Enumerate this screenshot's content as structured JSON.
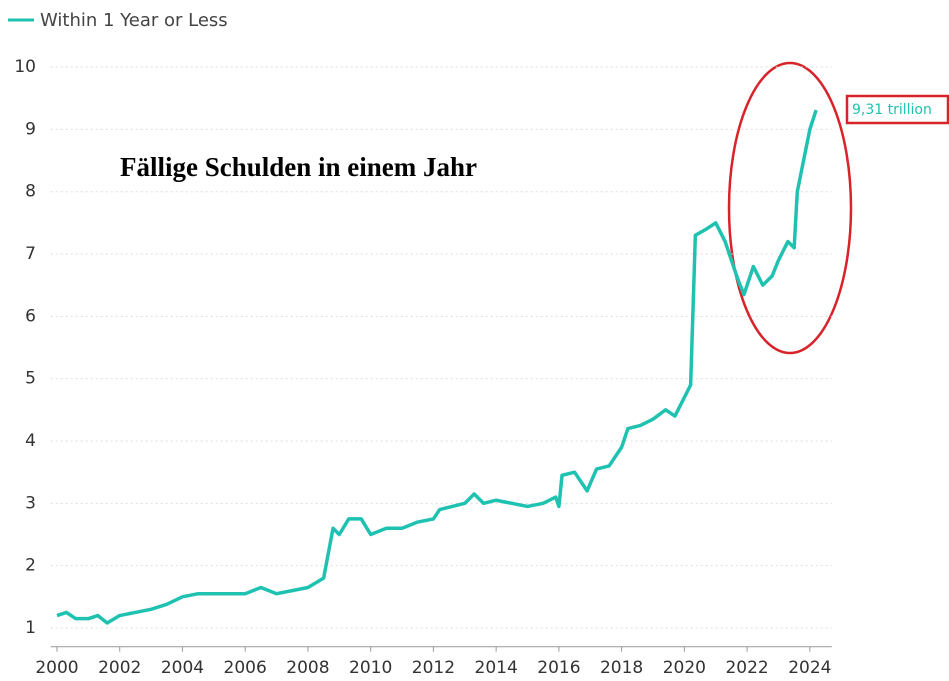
{
  "chart_data": {
    "type": "line",
    "title": "Fällige Schulden in einem Jahr",
    "annotation": "9,31 trillion",
    "x": [
      2000,
      2000.3,
      2000.6,
      2001,
      2001.3,
      2001.6,
      2002,
      2002.5,
      2003,
      2003.5,
      2004,
      2004.5,
      2005,
      2005.5,
      2006,
      2006.5,
      2007,
      2007.5,
      2008,
      2008.5,
      2008.8,
      2009,
      2009.3,
      2009.7,
      2010,
      2010.5,
      2011,
      2011.5,
      2012,
      2012.2,
      2012.6,
      2013,
      2013.3,
      2013.6,
      2014,
      2014.5,
      2015,
      2015.5,
      2015.9,
      2016,
      2016.1,
      2016.5,
      2016.9,
      2017.2,
      2017.6,
      2018,
      2018.2,
      2018.6,
      2019,
      2019.4,
      2019.7,
      2020,
      2020.2,
      2020.35,
      2020.7,
      2021,
      2021.3,
      2021.7,
      2021.9,
      2022.2,
      2022.5,
      2022.8,
      2023,
      2023.3,
      2023.5,
      2023.6,
      2023.8,
      2024,
      2024.2
    ],
    "series": [
      {
        "name": "Within 1 Year or Less",
        "color": "#1fc2b0",
        "values": [
          1.2,
          1.25,
          1.15,
          1.15,
          1.2,
          1.08,
          1.2,
          1.25,
          1.3,
          1.38,
          1.5,
          1.55,
          1.55,
          1.55,
          1.55,
          1.65,
          1.55,
          1.6,
          1.65,
          1.8,
          2.6,
          2.5,
          2.75,
          2.75,
          2.5,
          2.6,
          2.6,
          2.7,
          2.75,
          2.9,
          2.95,
          3.0,
          3.15,
          3.0,
          3.05,
          3.0,
          2.95,
          3.0,
          3.1,
          2.95,
          3.45,
          3.5,
          3.2,
          3.55,
          3.6,
          3.9,
          4.2,
          4.25,
          4.35,
          4.5,
          4.4,
          4.7,
          4.9,
          7.3,
          7.4,
          7.5,
          7.2,
          6.6,
          6.35,
          6.8,
          6.5,
          6.65,
          6.9,
          7.2,
          7.1,
          8.0,
          8.5,
          9.0,
          9.31
        ]
      }
    ],
    "xlim": [
      1999.8,
      2024.7
    ],
    "xticks": [
      2000,
      2002,
      2004,
      2006,
      2008,
      2010,
      2012,
      2014,
      2016,
      2018,
      2020,
      2022,
      2024
    ],
    "ylim": [
      0.7,
      10.1
    ],
    "yticks": [
      1,
      2,
      3,
      4,
      5,
      6,
      7,
      8,
      9,
      10
    ],
    "grid": true
  }
}
